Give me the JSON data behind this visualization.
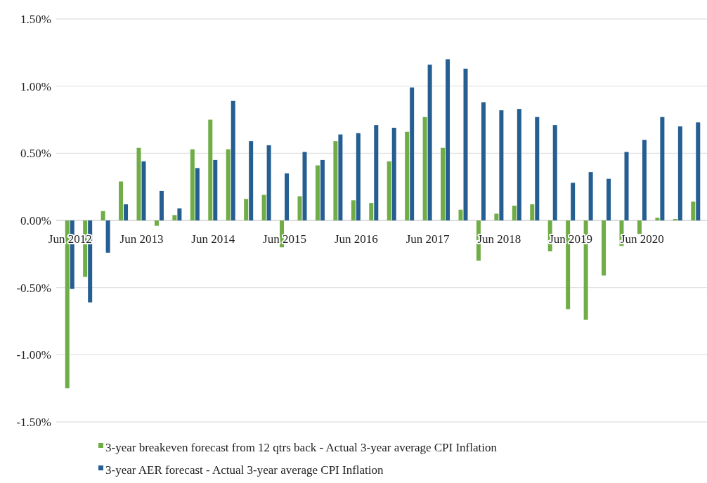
{
  "chart_data": {
    "type": "bar",
    "categories": [
      "Jun 2012",
      null,
      null,
      null,
      "Jun 2013",
      null,
      null,
      null,
      "Jun 2014",
      null,
      null,
      null,
      "Jun 2015",
      null,
      null,
      null,
      "Jun 2016",
      null,
      null,
      null,
      "Jun 2017",
      null,
      null,
      null,
      "Jun 2018",
      null,
      null,
      null,
      "Jun 2019",
      null,
      null,
      null,
      "Jun 2020",
      null,
      null,
      null
    ],
    "series": [
      {
        "name": "3-year breakeven forecast from 12 qtrs back - Actual 3-year average CPI Inflation",
        "color": "#70ad47",
        "values": [
          -1.25,
          -0.42,
          0.07,
          0.29,
          0.54,
          -0.04,
          0.04,
          0.53,
          0.75,
          0.53,
          0.16,
          0.19,
          -0.2,
          0.18,
          0.41,
          0.59,
          0.15,
          0.13,
          0.44,
          0.66,
          0.77,
          0.54,
          0.08,
          -0.3,
          0.05,
          0.11,
          0.12,
          -0.23,
          -0.66,
          -0.74,
          -0.41,
          -0.19,
          -0.1,
          0.02,
          0.01,
          0.14
        ]
      },
      {
        "name": "3-year AER forecast - Actual 3-year average CPI Inflation",
        "color": "#255e91",
        "values": [
          -0.51,
          -0.61,
          -0.24,
          0.12,
          0.44,
          0.22,
          0.09,
          0.39,
          0.45,
          0.89,
          0.59,
          0.56,
          0.35,
          0.51,
          0.45,
          0.64,
          0.65,
          0.71,
          0.69,
          0.99,
          1.16,
          1.2,
          1.13,
          0.88,
          0.82,
          0.83,
          0.77,
          0.71,
          0.28,
          0.36,
          0.31,
          0.51,
          0.6,
          0.77,
          0.7,
          0.73
        ]
      }
    ],
    "ylim": [
      -1.5,
      1.5
    ],
    "yticks": [
      {
        "value": -1.5,
        "label": "-1.50%"
      },
      {
        "value": -1,
        "label": "-1.00%"
      },
      {
        "value": -0.5,
        "label": "-0.50%"
      },
      {
        "value": 0,
        "label": "0.00%"
      },
      {
        "value": 0.5,
        "label": "0.50%"
      },
      {
        "value": 1,
        "label": "1.00%"
      },
      {
        "value": 1.5,
        "label": "1.50%"
      }
    ],
    "grid": "y",
    "legend": "bottom"
  }
}
